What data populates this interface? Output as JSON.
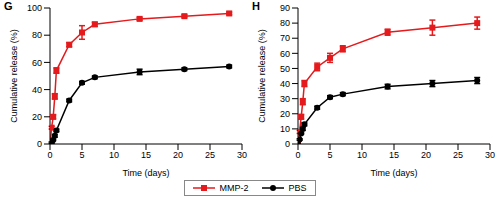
{
  "chart_data": [
    {
      "type": "line",
      "title": "G",
      "x_label": "Time (days)",
      "y_label": "Cumulative release (%)",
      "x": [
        0,
        0.25,
        0.5,
        0.75,
        1,
        3,
        5,
        7,
        14,
        21,
        28
      ],
      "xlim": [
        0,
        30
      ],
      "xticks": [
        0,
        5,
        10,
        15,
        20,
        25,
        30
      ],
      "ylim": [
        0,
        100
      ],
      "yticks": [
        0,
        20,
        40,
        60,
        80,
        100
      ],
      "legend": "bottom",
      "series": [
        {
          "name": "MMP-2",
          "color": "#e41a1c",
          "marker": "square",
          "values": [
            0,
            12,
            20,
            35,
            54,
            73,
            82,
            88,
            92,
            94,
            96
          ],
          "errors": [
            0,
            1,
            1.5,
            2,
            2,
            1.5,
            5,
            1.5,
            1,
            1,
            1
          ]
        },
        {
          "name": "PBS",
          "color": "#000000",
          "marker": "circle",
          "values": [
            0,
            1,
            3,
            6,
            10,
            32,
            45,
            49,
            53,
            55,
            57
          ],
          "errors": [
            0,
            0.5,
            0.5,
            1,
            1,
            1,
            1,
            1,
            2,
            1,
            1
          ]
        }
      ]
    },
    {
      "type": "line",
      "title": "H",
      "x_label": "Time (days)",
      "y_label": "Cumulative release (%)",
      "x": [
        0,
        0.25,
        0.5,
        0.75,
        1,
        3,
        5,
        7,
        14,
        21,
        28
      ],
      "xlim": [
        0,
        30
      ],
      "xticks": [
        0,
        5,
        10,
        15,
        20,
        25,
        30
      ],
      "ylim": [
        0,
        90
      ],
      "yticks": [
        0,
        10,
        20,
        30,
        40,
        50,
        60,
        70,
        80,
        90
      ],
      "legend": "bottom",
      "series": [
        {
          "name": "MMP-2",
          "color": "#e41a1c",
          "marker": "square",
          "values": [
            0,
            8,
            18,
            28,
            40,
            51,
            57,
            63,
            74,
            77,
            80
          ],
          "errors": [
            0,
            1,
            1.5,
            2,
            2,
            2.5,
            3,
            2,
            2,
            5,
            4
          ]
        },
        {
          "name": "PBS",
          "color": "#000000",
          "marker": "circle",
          "values": [
            0,
            3,
            7,
            10,
            13,
            24,
            31,
            33,
            38,
            40,
            42
          ],
          "errors": [
            0,
            0.5,
            0.5,
            1,
            1,
            1,
            1,
            1,
            1.5,
            2,
            2
          ]
        }
      ]
    }
  ]
}
